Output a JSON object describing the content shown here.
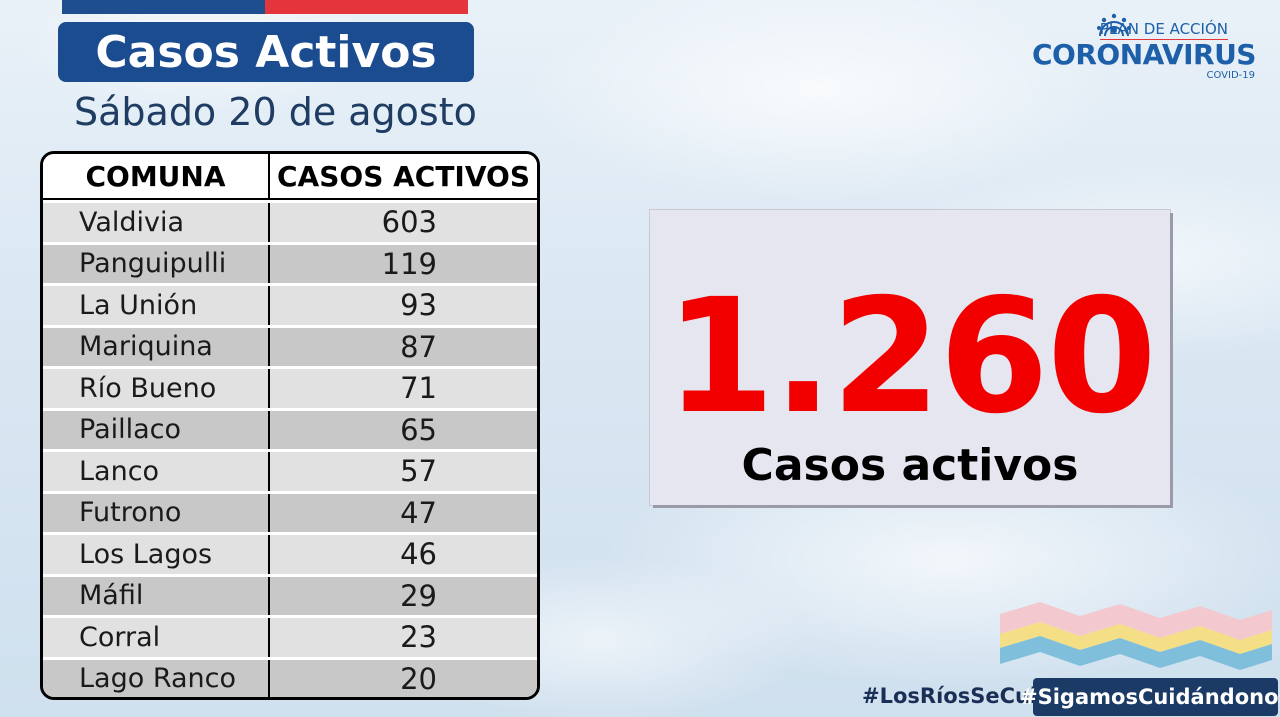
{
  "header": {
    "title": "Casos Activos",
    "date": "Sábado 20 de agosto"
  },
  "logo": {
    "plan": "PLAN DE ACCIÓN",
    "name": "CORONAVIRUS",
    "sub": "COVID-19",
    "icon": "virus-icon"
  },
  "table": {
    "headers": [
      "COMUNA",
      "CASOS ACTIVOS"
    ],
    "rows": [
      {
        "comuna": "Valdivia",
        "casos": "603"
      },
      {
        "comuna": "Panguipulli",
        "casos": "119"
      },
      {
        "comuna": "La Unión",
        "casos": "93"
      },
      {
        "comuna": "Mariquina",
        "casos": "87"
      },
      {
        "comuna": "Río Bueno",
        "casos": "71"
      },
      {
        "comuna": "Paillaco",
        "casos": "65"
      },
      {
        "comuna": "Lanco",
        "casos": "57"
      },
      {
        "comuna": "Futrono",
        "casos": "47"
      },
      {
        "comuna": "Los Lagos",
        "casos": "46"
      },
      {
        "comuna": "Máfil",
        "casos": "29"
      },
      {
        "comuna": "Corral",
        "casos": "23"
      },
      {
        "comuna": "Lago Ranco",
        "casos": "20"
      }
    ]
  },
  "total": {
    "value": "1.260",
    "label": "Casos activos"
  },
  "hashtags": {
    "primary": "#LosRíosSeCuida",
    "secondary": "#SigamosCuidándonos"
  },
  "colors": {
    "title_bg": "#1b4c8f",
    "flag_blue": "#1e4e8f",
    "flag_red": "#e4343c",
    "total_number": "#f20000",
    "tag_bg": "#1b3a66"
  }
}
